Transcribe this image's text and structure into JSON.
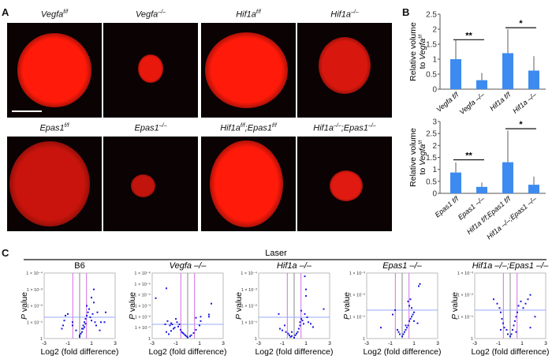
{
  "panel_labels": {
    "a": "A",
    "b": "B",
    "c": "C"
  },
  "panel_a": {
    "images": [
      {
        "label": "Vegfa",
        "sup": "f/f"
      },
      {
        "label": "Vegfa",
        "sup": "–/–"
      },
      {
        "label": "Hif1a",
        "sup": "f/f"
      },
      {
        "label": "Hif1a",
        "sup": "–/–"
      },
      {
        "label": "Epas1",
        "sup": "f/f"
      },
      {
        "label": "Epas1",
        "sup": "–/–"
      },
      {
        "label": "Hif1a",
        "sup": "f/f",
        "label2": ";Epas1",
        "sup2": "f/f"
      },
      {
        "label": "Hif1a",
        "sup": "–/–",
        "label2": ";Epas1",
        "sup2": "–/–"
      }
    ]
  },
  "chart_data": [
    {
      "type": "bar",
      "ylabel": "Relative volume to Vegfa f/f",
      "ylim": [
        0,
        2.5
      ],
      "yticks": [
        "0",
        "0.5",
        "1",
        "1.5",
        "2",
        "2.5"
      ],
      "categories": [
        "Vegfa f/f",
        "Vegfa –/–",
        "Hif1a f/f",
        "Hif1a –/–"
      ],
      "values": [
        1.0,
        0.3,
        1.2,
        0.62
      ],
      "errors": [
        0.63,
        0.24,
        0.8,
        0.48
      ],
      "significance": [
        {
          "from": 0,
          "to": 1,
          "label": "**"
        },
        {
          "from": 2,
          "to": 3,
          "label": "*"
        }
      ],
      "color": "#3d8bf0"
    },
    {
      "type": "bar",
      "ylabel": "Relative volume to Vegfa f/f",
      "ylim": [
        0,
        3
      ],
      "yticks": [
        "0",
        "0.5",
        "1",
        "1.5",
        "2",
        "2.5",
        "3"
      ],
      "categories": [
        "Epas1 f/f",
        "Epas1 –/–",
        "Hif1a f/f;Epas1 f/f",
        "Hif1a –/–;Epas1 –/–"
      ],
      "values": [
        0.87,
        0.27,
        1.3,
        0.36
      ],
      "errors": [
        0.42,
        0.18,
        1.32,
        0.34
      ],
      "significance": [
        {
          "from": 0,
          "to": 1,
          "label": "**"
        },
        {
          "from": 2,
          "to": 3,
          "label": "*"
        }
      ],
      "color": "#3d8bf0"
    },
    {
      "type": "scatter",
      "title": "B6",
      "group": "Laser",
      "xlabel": "Log2 (fold difference)",
      "ylabel": "P value",
      "xlim": [
        -3,
        3
      ],
      "xticks": [
        "-3",
        "-1",
        "1",
        "3"
      ],
      "ymax": 4,
      "yticks": [
        "1",
        "1 × 10⁻¹",
        "1 × 10⁻²",
        "1 × 10⁻³",
        "1 × 10⁻⁴"
      ],
      "points": [
        [
          -1.4,
          0.8
        ],
        [
          -1.2,
          1.4
        ],
        [
          -1.0,
          1.5
        ],
        [
          -1.3,
          1.1
        ],
        [
          -0.6,
          1.0
        ],
        [
          -0.6,
          0.8
        ],
        [
          -0.3,
          0.5
        ],
        [
          0,
          0.1
        ],
        [
          0,
          0.2
        ],
        [
          0.1,
          0.3
        ],
        [
          0.2,
          0.4
        ],
        [
          0.3,
          0.6
        ],
        [
          0.4,
          0.7
        ],
        [
          0.5,
          0.9
        ],
        [
          0.5,
          1.2
        ],
        [
          0.6,
          1.4
        ],
        [
          0.7,
          1.6
        ],
        [
          0.6,
          2.0
        ],
        [
          0.8,
          1.8
        ],
        [
          0.9,
          1.3
        ],
        [
          1.0,
          1.1
        ],
        [
          1.2,
          2.2
        ],
        [
          1.1,
          1.5
        ],
        [
          1.3,
          1.0
        ],
        [
          1.4,
          0.8
        ],
        [
          1.5,
          1.6
        ],
        [
          1.7,
          0.5
        ],
        [
          1.8,
          1.0
        ],
        [
          2.1,
          1.0
        ],
        [
          2.2,
          1.6
        ],
        [
          1.2,
          3.0
        ],
        [
          0.4,
          1.0
        ],
        [
          0.3,
          0.8
        ],
        [
          0.2,
          0.6
        ],
        [
          1.0,
          2.5
        ],
        [
          -1.5,
          0.6
        ]
      ]
    },
    {
      "type": "scatter",
      "title": "Vegfa –/–",
      "xlabel": "Log2 (fold difference)",
      "ylabel": "P value",
      "xlim": [
        -3,
        3
      ],
      "xticks": [
        "-3",
        "-1",
        "1",
        "3"
      ],
      "ymax": 6,
      "yticks": [
        "1",
        "1 × 10⁻¹",
        "1 × 10⁻²",
        "1 × 10⁻³",
        "1 × 10⁻⁴",
        "1 × 10⁻⁵",
        "1 × 10⁻⁶"
      ],
      "points": [
        [
          -2.7,
          3.7
        ],
        [
          -1.8,
          4.6
        ],
        [
          -1.7,
          1.6
        ],
        [
          -1.5,
          1.2
        ],
        [
          -1.4,
          1.4
        ],
        [
          -1.3,
          1.3
        ],
        [
          -1.2,
          0.9
        ],
        [
          -1.1,
          1.0
        ],
        [
          -1.0,
          1.8
        ],
        [
          -0.9,
          1.5
        ],
        [
          -0.8,
          1.1
        ],
        [
          -0.7,
          1.3
        ],
        [
          -0.6,
          0.8
        ],
        [
          -0.5,
          0.6
        ],
        [
          -0.4,
          0.5
        ],
        [
          -0.3,
          0.4
        ],
        [
          -0.2,
          0.3
        ],
        [
          -0.1,
          0.2
        ],
        [
          0,
          0.1
        ],
        [
          0.2,
          0.2
        ],
        [
          0.3,
          0.3
        ],
        [
          0.5,
          0.5
        ],
        [
          0.7,
          0.8
        ],
        [
          1.0,
          1.2
        ],
        [
          1.1,
          2.0
        ],
        [
          1.1,
          1.6
        ],
        [
          1.8,
          2.0
        ],
        [
          1.8,
          2.2
        ],
        [
          2.0,
          3.2
        ],
        [
          0.7,
          1.9
        ],
        [
          -1.9,
          1.3
        ],
        [
          -1.8,
          0.6
        ],
        [
          -1.6,
          0.4
        ],
        [
          -1.4,
          0.7
        ]
      ]
    },
    {
      "type": "scatter",
      "title": "Hif1a –/–",
      "xlabel": "Log2 (fold difference)",
      "ylabel": "P value",
      "xlim": [
        -3,
        3
      ],
      "xticks": [
        "-3",
        "-1",
        "1",
        "3"
      ],
      "ymax": 4,
      "yticks": [
        "1",
        "1 × 10⁻¹",
        "1 × 10⁻²",
        "1 × 10⁻³",
        "1 × 10⁻⁴"
      ],
      "points": [
        [
          -1.3,
          1.5
        ],
        [
          -1.2,
          0.6
        ],
        [
          -1.0,
          0.5
        ],
        [
          -0.8,
          0.8
        ],
        [
          -0.7,
          0.4
        ],
        [
          -0.5,
          0.3
        ],
        [
          -0.4,
          0.2
        ],
        [
          -0.3,
          0.1
        ],
        [
          -0.2,
          0.15
        ],
        [
          0,
          0.05
        ],
        [
          0.1,
          0.2
        ],
        [
          0.2,
          0.3
        ],
        [
          0.3,
          0.4
        ],
        [
          0.4,
          0.6
        ],
        [
          0.5,
          0.8
        ],
        [
          0.5,
          1.0
        ],
        [
          0.6,
          1.2
        ],
        [
          0.7,
          1.1
        ],
        [
          0.8,
          0.9
        ],
        [
          0.9,
          1.5
        ],
        [
          1.0,
          2.6
        ],
        [
          1.0,
          3.0
        ],
        [
          0.9,
          3.8
        ],
        [
          1.1,
          1.3
        ],
        [
          1.2,
          1.0
        ],
        [
          1.4,
          0.9
        ],
        [
          1.6,
          0.7
        ],
        [
          2.5,
          1.8
        ],
        [
          0.6,
          1.7
        ],
        [
          -0.2,
          0.4
        ]
      ]
    },
    {
      "type": "scatter",
      "title": "Epas1 –/–",
      "xlabel": "Log2 (fold difference)",
      "ylabel": "P value",
      "xlim": [
        -3,
        3
      ],
      "xticks": [
        "-3",
        "-1",
        "1",
        "3"
      ],
      "ymax": 3,
      "yticks": [
        "1",
        "1 × 10⁻¹",
        "1 × 10⁻²",
        "1 × 10⁻³"
      ],
      "points": [
        [
          -1.8,
          0.5
        ],
        [
          -0.8,
          1.1
        ],
        [
          -0.6,
          1.3
        ],
        [
          -0.4,
          0.4
        ],
        [
          -0.3,
          0.3
        ],
        [
          -0.2,
          0.2
        ],
        [
          0,
          0.1
        ],
        [
          0.1,
          0.2
        ],
        [
          0.2,
          0.3
        ],
        [
          0.3,
          0.4
        ],
        [
          0.4,
          0.5
        ],
        [
          0.5,
          0.6
        ],
        [
          0.6,
          0.8
        ],
        [
          0.7,
          0.9
        ],
        [
          0.8,
          1.0
        ],
        [
          0.9,
          1.1
        ],
        [
          0.6,
          1.5
        ],
        [
          0.7,
          1.8
        ],
        [
          0.5,
          1.7
        ],
        [
          0.8,
          1.4
        ],
        [
          1.0,
          0.8
        ],
        [
          1.3,
          0.7
        ],
        [
          1.4,
          2.4
        ],
        [
          1.5,
          2.5
        ],
        [
          1.0,
          1.2
        ],
        [
          0.3,
          0.6
        ]
      ]
    },
    {
      "type": "scatter",
      "title": "Hif1a –/–;Epas1 –/–",
      "xlabel": "Log2 (fold difference)",
      "ylabel": "P value",
      "xlim": [
        -3,
        3
      ],
      "xticks": [
        "-3",
        "-1",
        "1",
        "3"
      ],
      "ymax": 3,
      "yticks": [
        "1",
        "1 × 10⁻¹",
        "1 × 10⁻²",
        "1 × 10⁻³"
      ],
      "points": [
        [
          -1.4,
          1.8
        ],
        [
          -1.1,
          1.6
        ],
        [
          -0.9,
          1.4
        ],
        [
          -0.8,
          1.2
        ],
        [
          -0.7,
          0.9
        ],
        [
          -0.6,
          0.7
        ],
        [
          -0.5,
          0.5
        ],
        [
          -0.3,
          0.4
        ],
        [
          -0.2,
          0.2
        ],
        [
          0,
          0.1
        ],
        [
          0.1,
          0.2
        ],
        [
          0.2,
          0.4
        ],
        [
          0.3,
          0.6
        ],
        [
          0.4,
          0.8
        ],
        [
          0.5,
          1.0
        ],
        [
          0.6,
          1.2
        ],
        [
          0.7,
          1.5
        ],
        [
          0.9,
          1.7
        ],
        [
          1.1,
          1.4
        ],
        [
          1.3,
          1.6
        ],
        [
          1.5,
          1.8
        ],
        [
          1.7,
          2.0
        ],
        [
          1.7,
          0.5
        ],
        [
          2.1,
          1.0
        ],
        [
          0.5,
          0.3
        ],
        [
          -0.8,
          0.4
        ]
      ]
    }
  ]
}
